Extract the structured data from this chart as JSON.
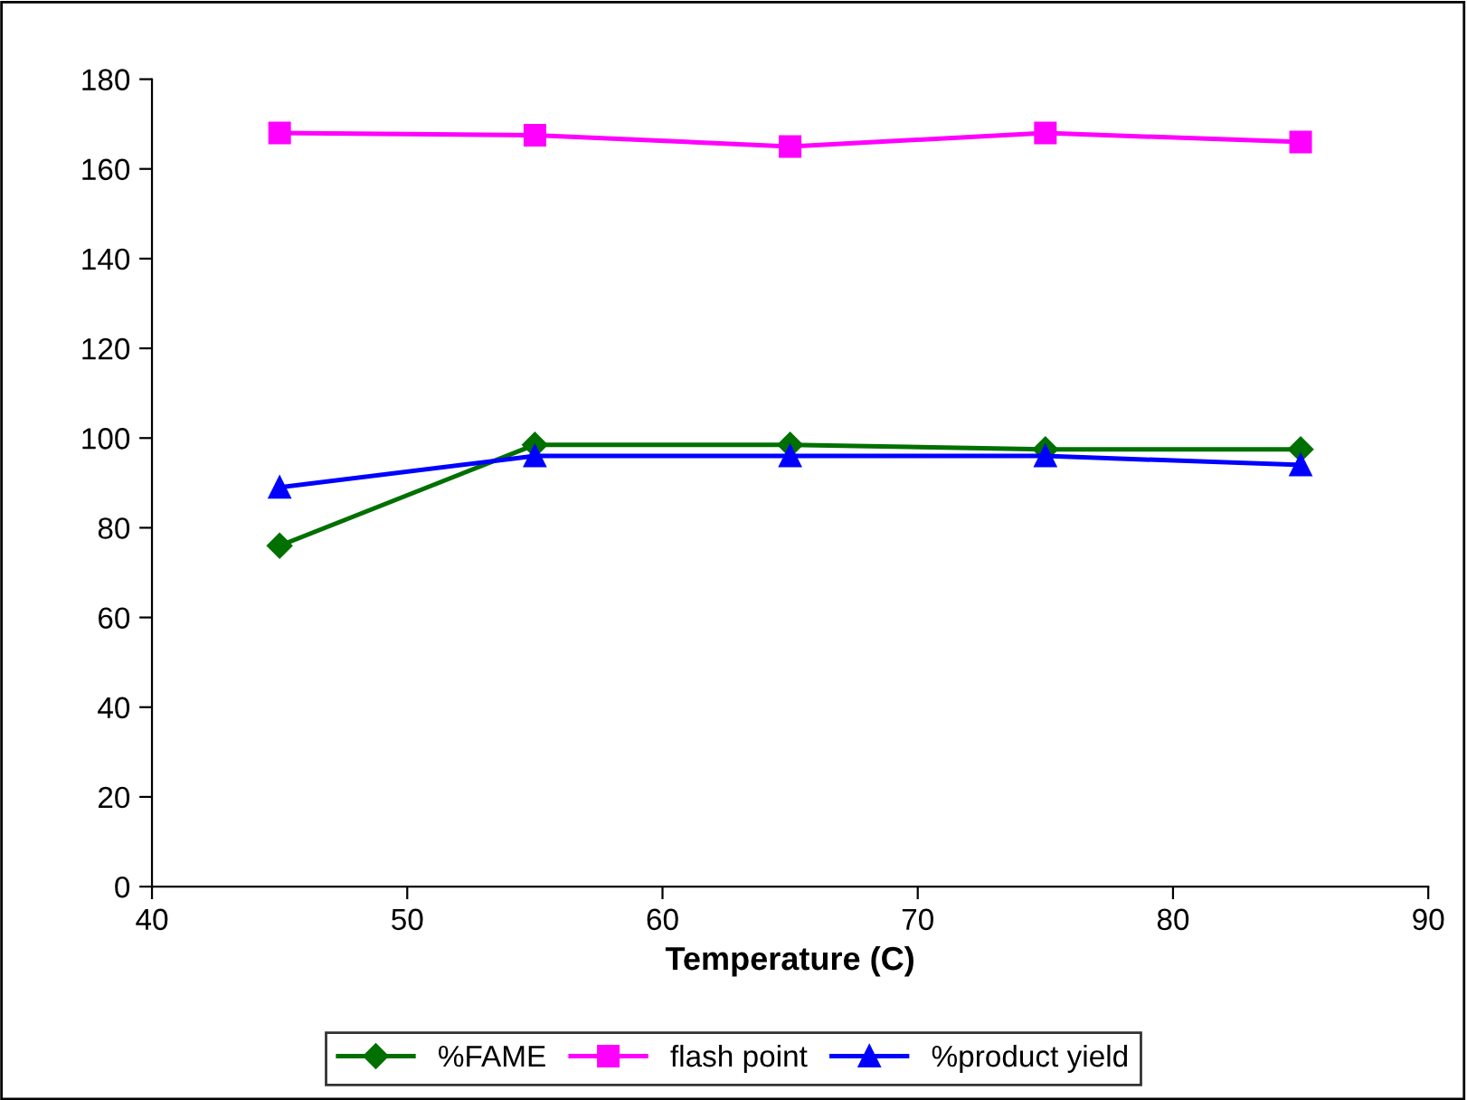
{
  "chart_data": {
    "type": "line",
    "xlabel": "Temperature (C)",
    "x": [
      45,
      55,
      65,
      75,
      85
    ],
    "series": [
      {
        "name": "%FAME",
        "color": "#007000",
        "marker": "diamond",
        "values": [
          76,
          98.5,
          98.5,
          97.5,
          97.5
        ]
      },
      {
        "name": "flash point",
        "color": "#ff00ff",
        "marker": "square",
        "values": [
          168,
          167.5,
          165,
          168,
          166
        ]
      },
      {
        "name": "%product yield",
        "color": "#0000ff",
        "marker": "triangle",
        "values": [
          89,
          96,
          96,
          96,
          94
        ]
      }
    ],
    "xlim": [
      40,
      90
    ],
    "xticks": [
      40,
      50,
      60,
      70,
      80,
      90
    ],
    "ylim": [
      0,
      180
    ],
    "yticks": [
      0,
      20,
      40,
      60,
      80,
      100,
      120,
      140,
      160,
      180
    ],
    "grid": false,
    "legend": "bottom",
    "line_style": "solid"
  }
}
